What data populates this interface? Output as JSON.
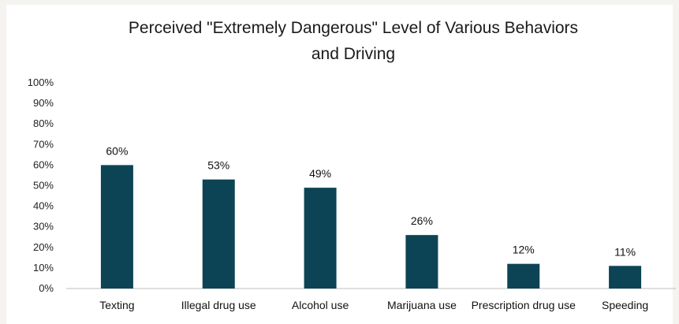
{
  "chart_data": {
    "type": "bar",
    "title_lines": [
      "Perceived \"Extremely Dangerous\" Level of Various Behaviors",
      "and Driving"
    ],
    "categories": [
      "Texting",
      "Illegal drug use",
      "Alcohol use",
      "Marijuana use",
      "Prescription drug use",
      "Speeding"
    ],
    "values": [
      60,
      53,
      49,
      26,
      12,
      11
    ],
    "data_labels": [
      "60%",
      "53%",
      "49%",
      "26%",
      "12%",
      "11%"
    ],
    "ylim": [
      0,
      100
    ],
    "yticks": [
      "0%",
      "10%",
      "20%",
      "30%",
      "40%",
      "50%",
      "60%",
      "70%",
      "80%",
      "90%",
      "100%"
    ],
    "xlabel": "",
    "ylabel": "",
    "grid": false,
    "legend": "none",
    "bar_color": "#0d4455"
  }
}
